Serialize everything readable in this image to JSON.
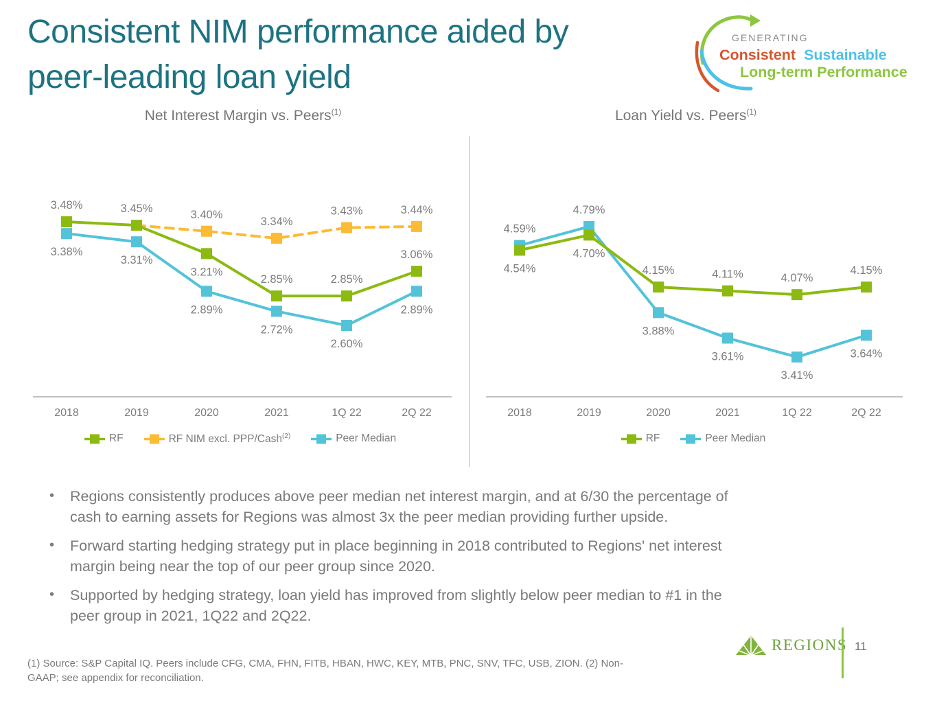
{
  "slide": {
    "title": "Consistent NIM performance aided by\npeer-leading loan yield"
  },
  "badge": {
    "generating": "GENERATING",
    "consistent": "Consistent",
    "sustainable": "Sustainable",
    "longterm": "Long-term Performance",
    "colors": {
      "generating": "#8a8a8a",
      "consistent": "#d6562e",
      "sustainable": "#4ec1e9",
      "longterm": "#8dc63f",
      "arc_green": "#8dc63f",
      "arc_blue": "#4ec1e9",
      "arc_orange": "#d6562e"
    }
  },
  "chart_data": [
    {
      "type": "line",
      "title": "Net Interest Margin vs. Peers",
      "title_sup": "(1)",
      "categories": [
        "2018",
        "2019",
        "2020",
        "2021",
        "1Q 22",
        "2Q 22"
      ],
      "series": [
        {
          "name": "RF",
          "color": "#8cba10",
          "values": [
            3.48,
            3.45,
            3.21,
            2.85,
            2.85,
            3.06
          ],
          "labels": [
            "3.48%",
            "3.45%",
            "3.21%",
            "2.85%",
            "2.85%",
            "3.06%"
          ],
          "label_side": [
            "above",
            "above",
            "below",
            "above",
            "above",
            "above"
          ],
          "dashed": false
        },
        {
          "name": "RF NIM excl. PPP/Cash",
          "name_sup": "(2)",
          "color": "#fbbb34",
          "values": [
            null,
            3.45,
            3.4,
            3.34,
            3.43,
            3.44
          ],
          "labels": [
            null,
            null,
            "3.40%",
            "3.34%",
            "3.43%",
            "3.44%"
          ],
          "label_side": [
            null,
            null,
            "above",
            "above",
            "above",
            "above"
          ],
          "markers": [
            false,
            false,
            true,
            true,
            true,
            true
          ],
          "dashed": true
        },
        {
          "name": "Peer Median",
          "color": "#53c3d9",
          "values": [
            3.38,
            3.31,
            2.89,
            2.72,
            2.6,
            2.89
          ],
          "labels": [
            "3.38%",
            "3.31%",
            "2.89%",
            "2.72%",
            "2.60%",
            "2.89%"
          ],
          "label_side": [
            "below",
            "below",
            "below",
            "below",
            "below",
            "below"
          ],
          "dashed": false
        }
      ],
      "ylim": [
        2.4,
        3.7
      ],
      "grid": false,
      "legend_position": "bottom"
    },
    {
      "type": "line",
      "title": "Loan Yield vs. Peers",
      "title_sup": "(1)",
      "categories": [
        "2018",
        "2019",
        "2020",
        "2021",
        "1Q 22",
        "2Q 22"
      ],
      "series": [
        {
          "name": "RF",
          "color": "#8cba10",
          "values": [
            4.54,
            4.7,
            4.15,
            4.11,
            4.07,
            4.15
          ],
          "labels": [
            "4.54%",
            "4.70%",
            "4.15%",
            "4.11%",
            "4.07%",
            "4.15%"
          ],
          "label_side": [
            "below",
            "below",
            "above",
            "above",
            "above",
            "above"
          ],
          "dashed": false
        },
        {
          "name": "Peer Median",
          "color": "#53c3d9",
          "values": [
            4.59,
            4.79,
            3.88,
            3.61,
            3.41,
            3.64
          ],
          "labels": [
            "4.59%",
            "4.79%",
            "3.88%",
            "3.61%",
            "3.41%",
            "3.64%"
          ],
          "label_side": [
            "above",
            "above",
            "below",
            "below",
            "below",
            "below"
          ],
          "dashed": false
        }
      ],
      "ylim": [
        3.2,
        5.0
      ],
      "grid": false,
      "legend_position": "bottom"
    }
  ],
  "bullets": [
    "Regions consistently produces above peer median net interest margin, and at 6/30 the percentage of\ncash to earning assets for Regions was almost 3x the peer median providing further upside.",
    "Forward starting hedging strategy put in place beginning in 2018 contributed to Regions' net interest\nmargin being near the top of our peer group since 2020.",
    "Supported by hedging strategy, loan yield has improved from slightly below peer median to #1 in the\npeer group in 2021, 1Q22 and 2Q22."
  ],
  "footer": {
    "note": "(1) Source: S&P Capital IQ. Peers include CFG, CMA, FHN, FITB, HBAN, HWC, KEY, MTB, PNC, SNV, TFC, USB, ZION. (2)  Non-\nGAAP; see appendix for reconciliation.",
    "brand": "REGIONS",
    "page": "11"
  }
}
